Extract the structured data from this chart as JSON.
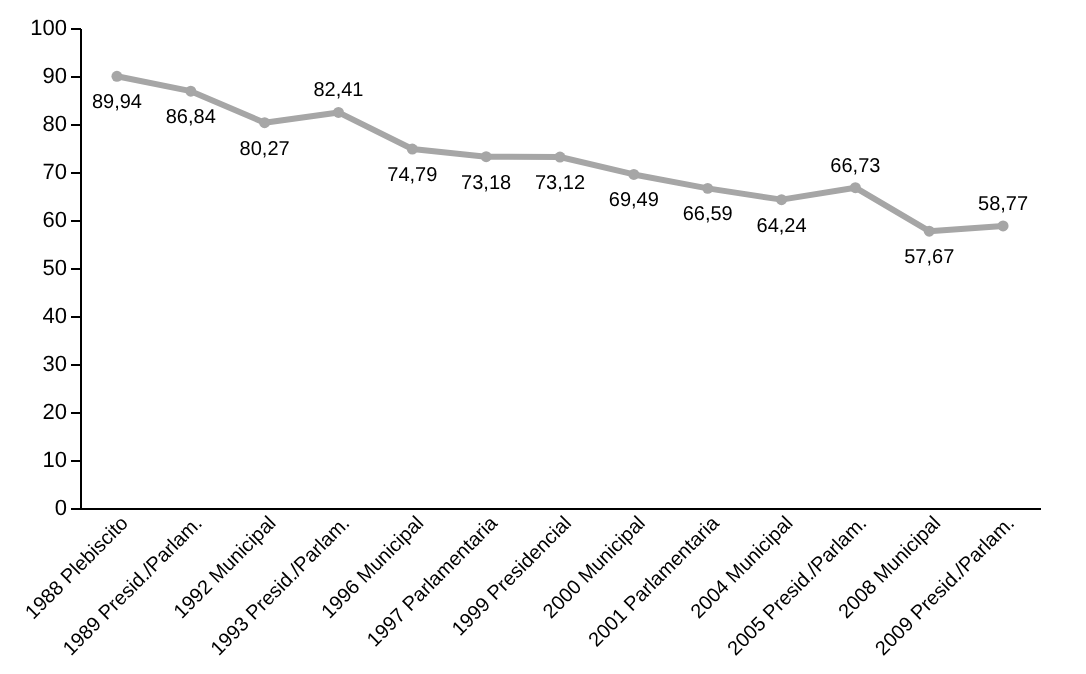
{
  "chart_data": {
    "type": "line",
    "categories": [
      "1988 Plebiscito",
      "1989 Presid./Parlam.",
      "1992 Municipal",
      "1993 Presid./Parlam.",
      "1996 Municipal",
      "1997 Parlamentaria",
      "1999 Presidencial",
      "2000 Municipal",
      "2001 Parlamentaria",
      "2004 Municipal",
      "2005 Presid./Parlam.",
      "2008 Municipal",
      "2009 Presid./Parlam."
    ],
    "series": [
      {
        "color": "#a6a6a6",
        "values": [
          89.94,
          86.84,
          80.27,
          82.41,
          74.79,
          73.18,
          73.12,
          69.49,
          66.59,
          64.24,
          66.73,
          57.67,
          58.77
        ]
      }
    ],
    "value_labels": [
      "89,94",
      "86,84",
      "80,27",
      "82,41",
      "74,79",
      "73,18",
      "73,12",
      "69,49",
      "66,59",
      "64,24",
      "66,73",
      "57,67",
      "58,77"
    ],
    "ylim": [
      0,
      100
    ],
    "yticks": [
      0,
      10,
      20,
      30,
      40,
      50,
      60,
      70,
      80,
      90,
      100
    ],
    "grid": false,
    "marker": "circle",
    "line_style": "solid"
  }
}
